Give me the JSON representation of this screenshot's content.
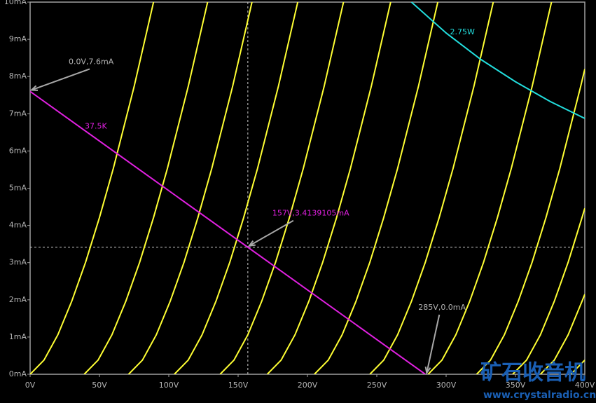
{
  "chart_data": {
    "type": "line",
    "xlim": [
      0,
      400
    ],
    "ylim": [
      0,
      10
    ],
    "xticks": [
      {
        "value": 0,
        "label": "0V"
      },
      {
        "value": 50,
        "label": "50V"
      },
      {
        "value": 100,
        "label": "100V"
      },
      {
        "value": 150,
        "label": "150V"
      },
      {
        "value": 200,
        "label": "200V"
      },
      {
        "value": 250,
        "label": "250V"
      },
      {
        "value": 300,
        "label": "300V"
      },
      {
        "value": 350,
        "label": "350V"
      },
      {
        "value": 400,
        "label": "400V"
      }
    ],
    "yticks": [
      {
        "value": 0,
        "label": "0mA"
      },
      {
        "value": 1,
        "label": "1mA"
      },
      {
        "value": 2,
        "label": "2mA"
      },
      {
        "value": 3,
        "label": "3mA"
      },
      {
        "value": 4,
        "label": "4mA"
      },
      {
        "value": 5,
        "label": "5mA"
      },
      {
        "value": 6,
        "label": "6mA"
      },
      {
        "value": 7,
        "label": "7mA"
      },
      {
        "value": 8,
        "label": "8mA"
      },
      {
        "value": 9,
        "label": "9mA"
      },
      {
        "value": 10,
        "label": "10mA"
      }
    ],
    "cursor": {
      "x": 157,
      "y": 3.4139105
    },
    "series": [
      {
        "color": "#ffff33",
        "x": [
          0,
          10,
          20,
          30,
          40,
          50,
          60,
          75,
          89
        ],
        "values": [
          0,
          0.38,
          1.06,
          1.96,
          3.01,
          4.21,
          5.53,
          7.73,
          10
        ]
      },
      {
        "color": "#ffff33",
        "x": [
          39,
          49,
          59,
          69,
          79,
          89,
          99,
          114,
          128
        ],
        "values": [
          0,
          0.38,
          1.06,
          1.96,
          3.01,
          4.21,
          5.53,
          7.73,
          10
        ]
      },
      {
        "color": "#ffff33",
        "x": [
          71,
          81,
          91,
          101,
          111,
          121,
          131,
          146,
          160
        ],
        "values": [
          0,
          0.38,
          1.06,
          1.96,
          3.01,
          4.21,
          5.53,
          7.73,
          10
        ]
      },
      {
        "color": "#ffff33",
        "x": [
          104,
          114,
          124,
          134,
          144,
          154,
          164,
          179,
          193
        ],
        "values": [
          0,
          0.38,
          1.06,
          1.96,
          3.01,
          4.21,
          5.53,
          7.73,
          10
        ]
      },
      {
        "color": "#ffff33",
        "x": [
          137,
          147,
          157,
          167,
          177,
          187,
          197,
          212,
          226
        ],
        "values": [
          0,
          0.38,
          1.06,
          1.96,
          3.01,
          4.21,
          5.53,
          7.73,
          10
        ]
      },
      {
        "color": "#ffff33",
        "x": [
          171,
          181,
          191,
          201,
          211,
          221,
          231,
          246,
          260
        ],
        "values": [
          0,
          0.38,
          1.06,
          1.96,
          3.01,
          4.21,
          5.53,
          7.73,
          10
        ]
      },
      {
        "color": "#ffff33",
        "x": [
          205,
          215,
          225,
          235,
          245,
          255,
          265,
          280,
          294
        ],
        "values": [
          0,
          0.38,
          1.06,
          1.96,
          3.01,
          4.21,
          5.53,
          7.73,
          10
        ]
      },
      {
        "color": "#ffff33",
        "x": [
          245,
          255,
          265,
          275,
          285,
          295,
          305,
          320,
          334
        ],
        "values": [
          0,
          0.38,
          1.06,
          1.96,
          3.01,
          4.21,
          5.53,
          7.73,
          10
        ]
      },
      {
        "color": "#ffff33",
        "x": [
          287,
          297,
          307,
          317,
          327,
          337,
          347,
          362,
          376
        ],
        "values": [
          0,
          0.38,
          1.06,
          1.96,
          3.01,
          4.21,
          5.53,
          7.73,
          10
        ]
      },
      {
        "color": "#ffff33",
        "x": [
          322,
          332,
          342,
          352,
          362,
          372,
          382,
          397,
          400
        ],
        "values": [
          0,
          0.38,
          1.06,
          1.96,
          3.01,
          4.21,
          5.53,
          7.73,
          8.2
        ]
      },
      {
        "color": "#ffff33",
        "x": [
          348,
          358,
          368,
          378,
          388,
          398,
          400
        ],
        "values": [
          0,
          0.38,
          1.06,
          1.96,
          3.01,
          4.21,
          4.46
        ]
      },
      {
        "color": "#ffff33",
        "x": [
          368,
          378,
          388,
          398,
          400
        ],
        "values": [
          0,
          0.38,
          1.06,
          1.96,
          2.15
        ]
      },
      {
        "color": "#ffff33",
        "x": [
          390,
          400
        ],
        "values": [
          0,
          0.38
        ]
      },
      {
        "name": "37.5K",
        "color": "#e020e0",
        "x": [
          0,
          285
        ],
        "values": [
          7.6,
          0
        ]
      },
      {
        "name": "2.75W",
        "color": "#22dddd",
        "x": [
          275,
          300,
          325,
          350,
          375,
          400
        ],
        "values": [
          10,
          9.17,
          8.46,
          7.86,
          7.33,
          6.875
        ]
      }
    ],
    "annotations": [
      {
        "text": "0.0V,7.6mA",
        "x": 0,
        "y": 7.6
      },
      {
        "text": "157V,3.4139105mA",
        "x": 157,
        "y": 3.4139105
      },
      {
        "text": "285V,0.0mA",
        "x": 285,
        "y": 0
      }
    ],
    "watermark": {
      "title": "矿石收音机",
      "url": "www.crystalradio.cn"
    }
  }
}
